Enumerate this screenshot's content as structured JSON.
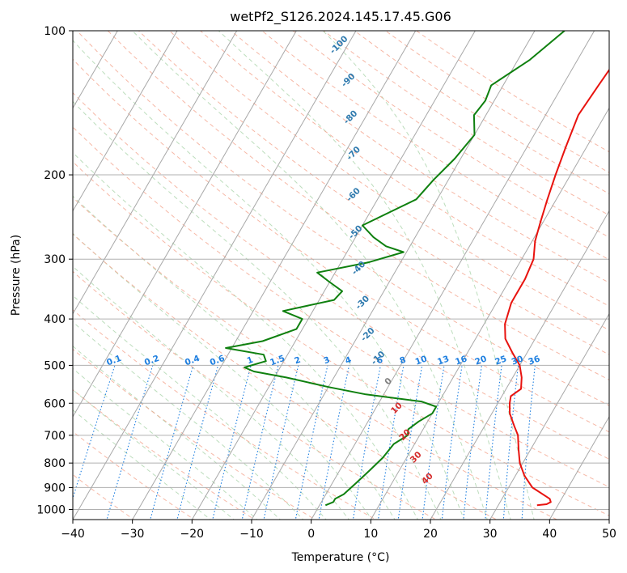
{
  "chart_data": {
    "type": "line",
    "title": "wetPf2_S126.2024.145.17.45.G06",
    "xlabel": "Temperature (°C)",
    "ylabel": "Pressure (hPa)",
    "xlim": [
      -40,
      50
    ],
    "ylim": [
      1050,
      100
    ],
    "y_scale": "log",
    "x_ticks": [
      -40,
      -30,
      -20,
      -10,
      0,
      10,
      20,
      30,
      40,
      50
    ],
    "x_tick_labels": [
      "−40",
      "−30",
      "−20",
      "−10",
      "0",
      "10",
      "20",
      "30",
      "40",
      "50"
    ],
    "y_ticks": [
      100,
      200,
      300,
      400,
      500,
      600,
      700,
      800,
      900,
      1000
    ],
    "y_tick_labels": [
      "100",
      "200",
      "300",
      "400",
      "500",
      "600",
      "700",
      "800",
      "900",
      "1000"
    ],
    "grid": true,
    "series": [
      {
        "color": "#e8130f",
        "points": [
          [
            6.0,
            100
          ],
          [
            6.5,
            115
          ],
          [
            6.0,
            130
          ],
          [
            5.5,
            150
          ],
          [
            6.5,
            175
          ],
          [
            7.5,
            200
          ],
          [
            8.5,
            225
          ],
          [
            9.5,
            250
          ],
          [
            10.5,
            275
          ],
          [
            12.0,
            300
          ],
          [
            12.5,
            330
          ],
          [
            12.5,
            370
          ],
          [
            13.5,
            410
          ],
          [
            15.0,
            440
          ],
          [
            17.5,
            470
          ],
          [
            20.0,
            500
          ],
          [
            21.5,
            530
          ],
          [
            22.5,
            560
          ],
          [
            21.5,
            580
          ],
          [
            22.0,
            600
          ],
          [
            23.0,
            630
          ],
          [
            25.0,
            670
          ],
          [
            26.5,
            700
          ],
          [
            28.0,
            750
          ],
          [
            29.5,
            800
          ],
          [
            31.5,
            850
          ],
          [
            34.0,
            900
          ],
          [
            38.0,
            950
          ],
          [
            38.5,
            965
          ],
          [
            38.0,
            975
          ],
          [
            36.5,
            980
          ]
        ]
      },
      {
        "color": "#0f800f",
        "points": [
          [
            -5.0,
            100
          ],
          [
            -8.0,
            115
          ],
          [
            -12.0,
            130
          ],
          [
            -11.5,
            140
          ],
          [
            -12.0,
            150
          ],
          [
            -10.0,
            165
          ],
          [
            -11.0,
            185
          ],
          [
            -12.5,
            205
          ],
          [
            -13.5,
            225
          ],
          [
            -20.0,
            255
          ],
          [
            -17.0,
            270
          ],
          [
            -14.0,
            282
          ],
          [
            -10.5,
            290
          ],
          [
            -15.5,
            305
          ],
          [
            -23.0,
            320
          ],
          [
            -20.0,
            335
          ],
          [
            -17.0,
            350
          ],
          [
            -17.5,
            365
          ],
          [
            -25.0,
            385
          ],
          [
            -21.0,
            400
          ],
          [
            -21.0,
            420
          ],
          [
            -25.5,
            445
          ],
          [
            -31.0,
            460
          ],
          [
            -24.0,
            475
          ],
          [
            -23.0,
            490
          ],
          [
            -26.0,
            505
          ],
          [
            -24.0,
            515
          ],
          [
            -18.0,
            530
          ],
          [
            -10.0,
            555
          ],
          [
            -3.0,
            575
          ],
          [
            7.0,
            595
          ],
          [
            10.0,
            610
          ],
          [
            10.0,
            630
          ],
          [
            8.5,
            655
          ],
          [
            7.5,
            680
          ],
          [
            8.0,
            700
          ],
          [
            6.5,
            730
          ],
          [
            6.0,
            780
          ],
          [
            5.0,
            830
          ],
          [
            4.0,
            880
          ],
          [
            3.0,
            930
          ],
          [
            2.0,
            950
          ],
          [
            2.0,
            965
          ],
          [
            1.0,
            980
          ]
        ]
      }
    ],
    "dry_adiabats_K": [
      200,
      210,
      220,
      230,
      240,
      250,
      260,
      270,
      280,
      290,
      300,
      310,
      320,
      330,
      340,
      350,
      360,
      370,
      380,
      390,
      400,
      410,
      420,
      430,
      440,
      450,
      460,
      470
    ],
    "moist_adiabats_C": [
      -20,
      -16,
      -12,
      -8,
      -4,
      0,
      4,
      8,
      12,
      16,
      20,
      24,
      28,
      32,
      36
    ],
    "mixing_ratio_lines": [
      {
        "value": 0.1,
        "label": "0.1"
      },
      {
        "value": 0.2,
        "label": "0.2"
      },
      {
        "value": 0.4,
        "label": "0.4"
      },
      {
        "value": 0.6,
        "label": "0.6"
      },
      {
        "value": 1,
        "label": "1"
      },
      {
        "value": 1.5,
        "label": "1.5"
      },
      {
        "value": 2,
        "label": "2"
      },
      {
        "value": 3,
        "label": "3"
      },
      {
        "value": 4,
        "label": "4"
      },
      {
        "value": 6,
        "label": "6"
      },
      {
        "value": 8,
        "label": "8"
      },
      {
        "value": 10,
        "label": "10"
      },
      {
        "value": 13,
        "label": "13"
      },
      {
        "value": 16,
        "label": "16"
      },
      {
        "value": 20,
        "label": "20"
      },
      {
        "value": 25,
        "label": "25"
      },
      {
        "value": 30,
        "label": "30"
      },
      {
        "value": 36,
        "label": "36"
      }
    ],
    "isotherm_labels": [
      {
        "label": "-100",
        "color": "#2f7aae",
        "at": [
          -41,
          108
        ]
      },
      {
        "label": "-90",
        "color": "#2f7aae",
        "at": [
          -36,
          128
        ]
      },
      {
        "label": "-80",
        "color": "#2f7aae",
        "at": [
          -32,
          153
        ]
      },
      {
        "label": "-70",
        "color": "#2f7aae",
        "at": [
          -28,
          182
        ]
      },
      {
        "label": "-60",
        "color": "#2f7aae",
        "at": [
          -24,
          222
        ]
      },
      {
        "label": "-50",
        "color": "#2f7aae",
        "at": [
          -20,
          266
        ]
      },
      {
        "label": "-40",
        "color": "#2f7aae",
        "at": [
          -16,
          316
        ]
      },
      {
        "label": "-30",
        "color": "#2f7aae",
        "at": [
          -12,
          373
        ]
      },
      {
        "label": "-20",
        "color": "#2f7aae",
        "at": [
          -8,
          435
        ]
      },
      {
        "label": "-10",
        "color": "#2f7aae",
        "at": [
          -4,
          487
        ]
      },
      {
        "label": "0",
        "color": "#808080",
        "at": [
          0,
          545
        ]
      },
      {
        "label": "10",
        "color": "#d42a2a",
        "at": [
          4,
          620
        ]
      },
      {
        "label": "20",
        "color": "#d42a2a",
        "at": [
          8,
          705
        ]
      },
      {
        "label": "30",
        "color": "#d42a2a",
        "at": [
          12,
          785
        ]
      },
      {
        "label": "40",
        "color": "#d42a2a",
        "at": [
          16,
          870
        ]
      }
    ]
  }
}
